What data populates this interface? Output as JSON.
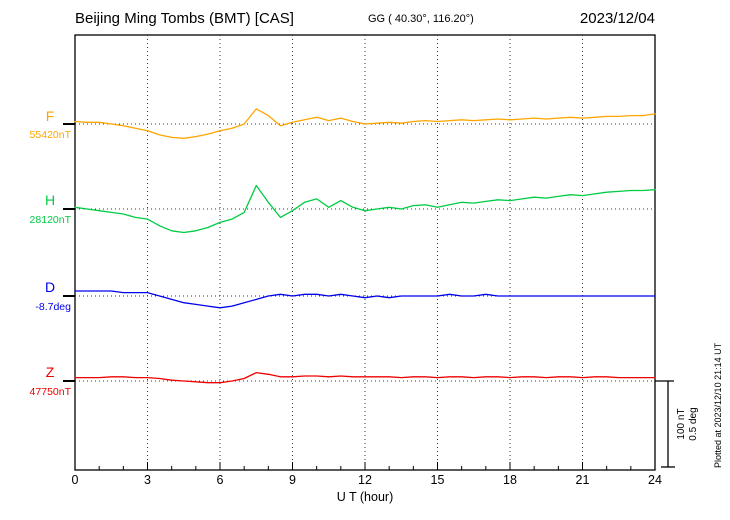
{
  "header": {
    "title": "Beijing Ming Tombs (BMT)  [CAS]",
    "coords": "GG ( 40.30°, 116.20°)",
    "date": "2023/12/04"
  },
  "footer": {
    "plotted_at": "Plotted at 2023/12/10 21:14 UT"
  },
  "chart_data": {
    "type": "line",
    "title": "Beijing Ming Tombs (BMT)  [CAS]",
    "date": "2023/12/04",
    "xlabel": "U T (hour)",
    "xlim": [
      0,
      24
    ],
    "x_ticks": [
      0,
      3,
      6,
      9,
      12,
      15,
      18,
      21,
      24
    ],
    "sample_interval_hours": 0.5,
    "grid": "dotted vertical at 3h intervals, dotted horizontal baselines",
    "scale_bar": {
      "nt_label": "100 nT",
      "deg_label": "0.5 deg"
    },
    "series": [
      {
        "name": "F",
        "baseline_label": "55420nT",
        "baseline_value": 55420,
        "unit": "nT",
        "color": "#ffa500",
        "offsets": [
          3,
          2,
          2,
          0,
          -2,
          -5,
          -8,
          -13,
          -16,
          -17,
          -15,
          -12,
          -8,
          -5,
          0,
          18,
          10,
          -2,
          2,
          5,
          8,
          4,
          7,
          3,
          0,
          1,
          2,
          1,
          3,
          4,
          3,
          4,
          5,
          4,
          5,
          6,
          5,
          6,
          7,
          6,
          7,
          8,
          7,
          8,
          9,
          9,
          10,
          10,
          12
        ]
      },
      {
        "name": "H",
        "baseline_label": "28120nT",
        "baseline_value": 28120,
        "unit": "nT",
        "color": "#00cc44",
        "offsets": [
          2,
          0,
          -2,
          -4,
          -6,
          -10,
          -12,
          -20,
          -26,
          -28,
          -26,
          -22,
          -16,
          -12,
          -4,
          28,
          8,
          -10,
          -2,
          8,
          12,
          2,
          10,
          2,
          -2,
          0,
          2,
          0,
          4,
          5,
          2,
          5,
          8,
          7,
          9,
          11,
          10,
          12,
          14,
          13,
          15,
          17,
          16,
          18,
          20,
          21,
          22,
          22,
          23
        ]
      },
      {
        "name": "D",
        "baseline_label": "-8.7deg",
        "baseline_value": -8.7,
        "unit": "deg",
        "color": "#0000ee",
        "offsets": [
          0.03,
          0.03,
          0.03,
          0.03,
          0.02,
          0.02,
          0.02,
          0.0,
          -0.02,
          -0.04,
          -0.05,
          -0.06,
          -0.07,
          -0.06,
          -0.04,
          -0.02,
          0.0,
          0.01,
          0.0,
          0.01,
          0.01,
          0.0,
          0.01,
          0.0,
          -0.01,
          0.0,
          -0.01,
          0.0,
          0.0,
          0.0,
          0.0,
          0.01,
          0.0,
          0.0,
          0.01,
          0.0,
          0.0,
          0.0,
          0.0,
          0.0,
          0.0,
          0.0,
          0.0,
          0.0,
          0.0,
          0.0,
          0.0,
          0.0,
          0.0
        ]
      },
      {
        "name": "Z",
        "baseline_label": "47750nT",
        "baseline_value": 47750,
        "unit": "nT",
        "color": "#ee0000",
        "offsets": [
          4,
          4,
          4,
          5,
          5,
          4,
          4,
          3,
          1,
          0,
          -1,
          -2,
          -2,
          0,
          3,
          10,
          8,
          5,
          5,
          6,
          6,
          5,
          6,
          5,
          5,
          5,
          5,
          4,
          5,
          5,
          4,
          5,
          5,
          4,
          5,
          5,
          4,
          5,
          5,
          4,
          5,
          5,
          4,
          5,
          5,
          4,
          4,
          4,
          4
        ]
      }
    ]
  }
}
